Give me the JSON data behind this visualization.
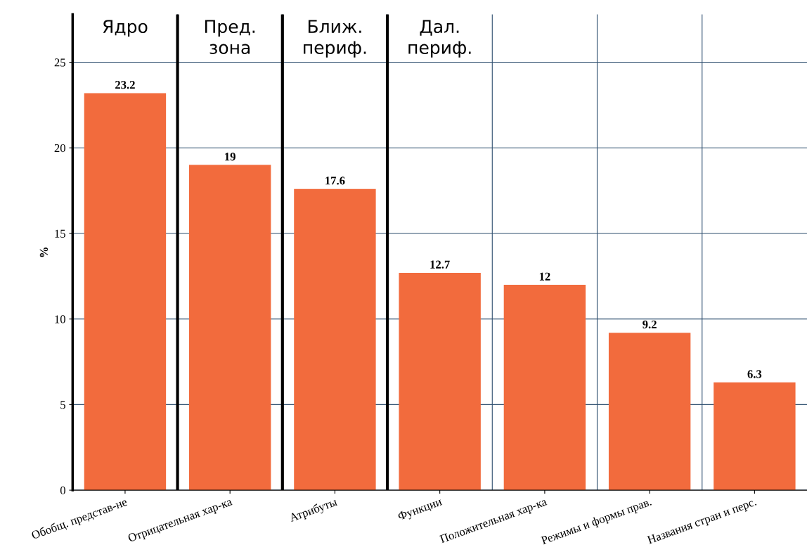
{
  "chart_data": {
    "type": "bar",
    "ylabel": "%",
    "categories": [
      "Обобщ. представ-не",
      "Отрицательная хар-ка",
      "Атрибуты",
      "Функции",
      "Положительная хар-ка",
      "Режимы и формы прав.",
      "Названия стран и перс."
    ],
    "values": [
      23.2,
      19,
      17.6,
      12.7,
      12,
      9.2,
      6.3
    ],
    "color": "#f26b3d",
    "data_labels": true,
    "ylim": [
      0,
      27.8
    ],
    "yticks": [
      0,
      5,
      10,
      15,
      20,
      25
    ],
    "grid": true,
    "annotations": [
      "Ядро",
      "Пред.\nзона",
      "Ближ.\nпериф.",
      "Дал.\nпериф."
    ]
  }
}
